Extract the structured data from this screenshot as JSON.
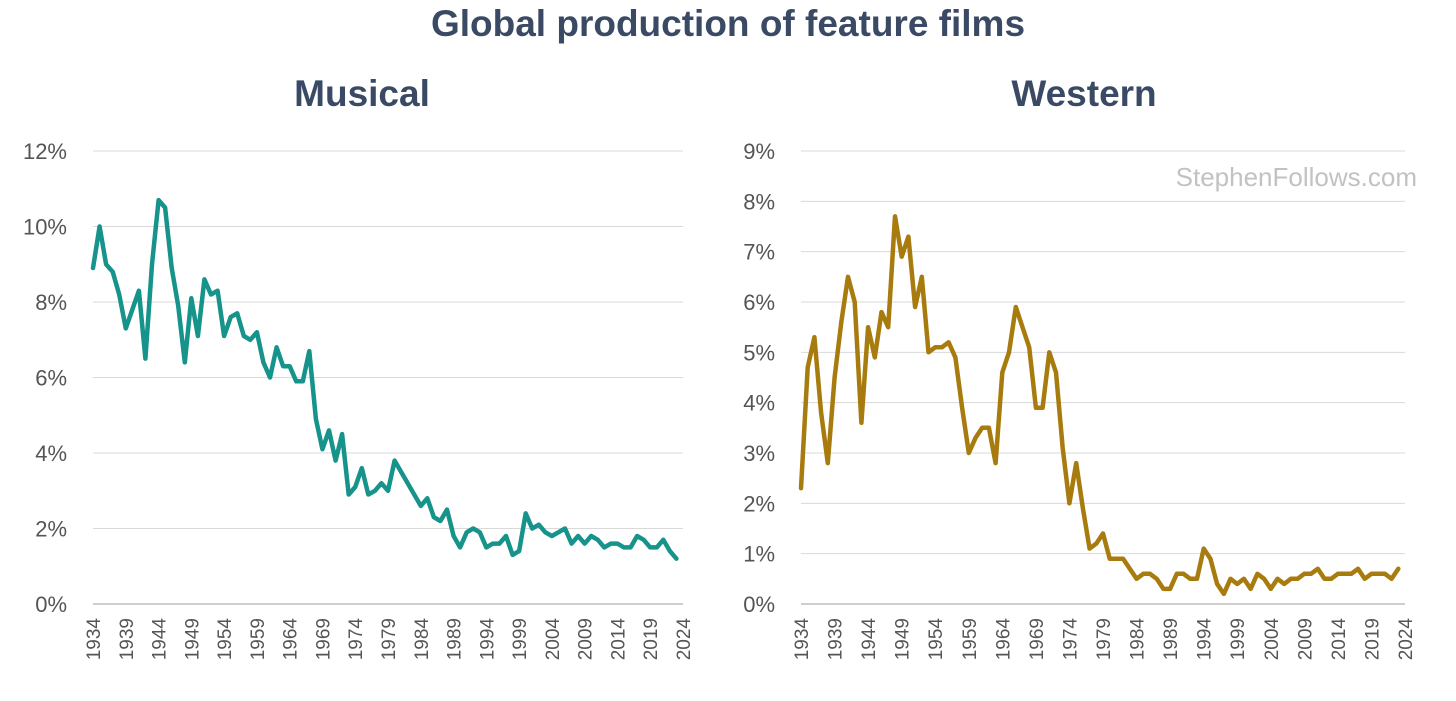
{
  "title": "Global production of feature films",
  "watermark": "StephenFollows.com",
  "chart_data": [
    {
      "type": "line",
      "title": "Musical",
      "xlabel": "",
      "ylabel": "",
      "ylim": [
        0,
        12
      ],
      "yticks": [
        "0%",
        "2%",
        "4%",
        "6%",
        "8%",
        "10%",
        "12%"
      ],
      "yticks_values": [
        0,
        2,
        4,
        6,
        8,
        10,
        12
      ],
      "xticks": [
        "1934",
        "1939",
        "1944",
        "1949",
        "1954",
        "1959",
        "1964",
        "1969",
        "1974",
        "1979",
        "1984",
        "1989",
        "1994",
        "1999",
        "2004",
        "2009",
        "2014",
        "2019",
        "2024"
      ],
      "x": [
        1934,
        1935,
        1936,
        1937,
        1938,
        1939,
        1940,
        1941,
        1942,
        1943,
        1944,
        1945,
        1946,
        1947,
        1948,
        1949,
        1950,
        1951,
        1952,
        1953,
        1954,
        1955,
        1956,
        1957,
        1958,
        1959,
        1960,
        1961,
        1962,
        1963,
        1964,
        1965,
        1966,
        1967,
        1968,
        1969,
        1970,
        1971,
        1972,
        1973,
        1974,
        1975,
        1976,
        1977,
        1978,
        1979,
        1980,
        1981,
        1982,
        1983,
        1984,
        1985,
        1986,
        1987,
        1988,
        1989,
        1990,
        1991,
        1992,
        1993,
        1994,
        1995,
        1996,
        1997,
        1998,
        1999,
        2000,
        2001,
        2002,
        2003,
        2004,
        2005,
        2006,
        2007,
        2008,
        2009,
        2010,
        2011,
        2012,
        2013,
        2014,
        2015,
        2016,
        2017,
        2018,
        2019,
        2020,
        2021,
        2022,
        2023
      ],
      "grid": true,
      "color": "#16938a",
      "series": [
        {
          "values": [
            8.9,
            10.0,
            9.0,
            8.8,
            8.2,
            7.3,
            7.8,
            8.3,
            6.5,
            9.0,
            10.7,
            10.5,
            8.9,
            7.9,
            6.4,
            8.1,
            7.1,
            8.6,
            8.2,
            8.3,
            7.1,
            7.6,
            7.7,
            7.1,
            7.0,
            7.2,
            6.4,
            6.0,
            6.8,
            6.3,
            6.3,
            5.9,
            5.9,
            6.7,
            4.9,
            4.1,
            4.6,
            3.8,
            4.5,
            2.9,
            3.1,
            3.6,
            2.9,
            3.0,
            3.2,
            3.0,
            3.8,
            3.5,
            3.2,
            2.9,
            2.6,
            2.8,
            2.3,
            2.2,
            2.5,
            1.8,
            1.5,
            1.9,
            2.0,
            1.9,
            1.5,
            1.6,
            1.6,
            1.8,
            1.3,
            1.4,
            2.4,
            2.0,
            2.1,
            1.9,
            1.8,
            1.9,
            2.0,
            1.6,
            1.8,
            1.6,
            1.8,
            1.7,
            1.5,
            1.6,
            1.6,
            1.5,
            1.5,
            1.8,
            1.7,
            1.5,
            1.5,
            1.7,
            1.4,
            1.2
          ]
        }
      ]
    },
    {
      "type": "line",
      "title": "Western",
      "xlabel": "",
      "ylabel": "",
      "ylim": [
        0,
        9
      ],
      "yticks": [
        "0%",
        "1%",
        "2%",
        "3%",
        "4%",
        "5%",
        "6%",
        "7%",
        "8%",
        "9%"
      ],
      "yticks_values": [
        0,
        1,
        2,
        3,
        4,
        5,
        6,
        7,
        8,
        9
      ],
      "xticks": [
        "1934",
        "1939",
        "1944",
        "1949",
        "1954",
        "1959",
        "1964",
        "1969",
        "1974",
        "1979",
        "1984",
        "1989",
        "1994",
        "1999",
        "2004",
        "2009",
        "2014",
        "2019",
        "2024"
      ],
      "x": [
        1934,
        1935,
        1936,
        1937,
        1938,
        1939,
        1940,
        1941,
        1942,
        1943,
        1944,
        1945,
        1946,
        1947,
        1948,
        1949,
        1950,
        1951,
        1952,
        1953,
        1954,
        1955,
        1956,
        1957,
        1958,
        1959,
        1960,
        1961,
        1962,
        1963,
        1964,
        1965,
        1966,
        1967,
        1968,
        1969,
        1970,
        1971,
        1972,
        1973,
        1974,
        1975,
        1976,
        1977,
        1978,
        1979,
        1980,
        1981,
        1982,
        1983,
        1984,
        1985,
        1986,
        1987,
        1988,
        1989,
        1990,
        1991,
        1992,
        1993,
        1994,
        1995,
        1996,
        1997,
        1998,
        1999,
        2000,
        2001,
        2002,
        2003,
        2004,
        2005,
        2006,
        2007,
        2008,
        2009,
        2010,
        2011,
        2012,
        2013,
        2014,
        2015,
        2016,
        2017,
        2018,
        2019,
        2020,
        2021,
        2022,
        2023
      ],
      "grid": true,
      "color": "#a87b0e",
      "series": [
        {
          "values": [
            2.3,
            4.7,
            5.3,
            3.8,
            2.8,
            4.5,
            5.6,
            6.5,
            6.0,
            3.6,
            5.5,
            4.9,
            5.8,
            5.5,
            7.7,
            6.9,
            7.3,
            5.9,
            6.5,
            5.0,
            5.1,
            5.1,
            5.2,
            4.9,
            3.9,
            3.0,
            3.3,
            3.5,
            3.5,
            2.8,
            4.6,
            5.0,
            5.9,
            5.5,
            5.1,
            3.9,
            3.9,
            5.0,
            4.6,
            3.1,
            2.0,
            2.8,
            1.9,
            1.1,
            1.2,
            1.4,
            0.9,
            0.9,
            0.9,
            0.7,
            0.5,
            0.6,
            0.6,
            0.5,
            0.3,
            0.3,
            0.6,
            0.6,
            0.5,
            0.5,
            1.1,
            0.9,
            0.4,
            0.2,
            0.5,
            0.4,
            0.5,
            0.3,
            0.6,
            0.5,
            0.3,
            0.5,
            0.4,
            0.5,
            0.5,
            0.6,
            0.6,
            0.7,
            0.5,
            0.5,
            0.6,
            0.6,
            0.6,
            0.7,
            0.5,
            0.6,
            0.6,
            0.6,
            0.5,
            0.7
          ]
        }
      ]
    }
  ]
}
